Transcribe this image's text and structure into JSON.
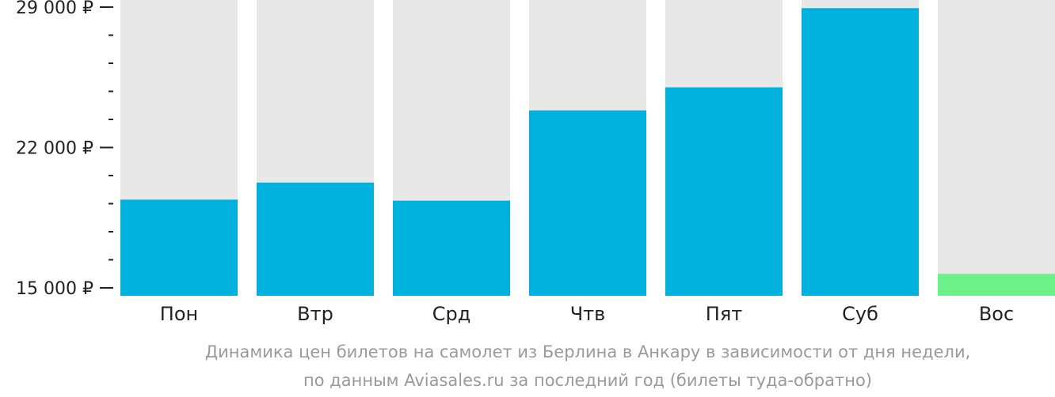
{
  "chart_data": {
    "type": "bar",
    "categories": [
      "Пон",
      "Втр",
      "Срд",
      "Чтв",
      "Пят",
      "Суб",
      "Вос"
    ],
    "values": [
      19400,
      20250,
      19350,
      23850,
      25000,
      28950,
      15700
    ],
    "ylim": [
      15000,
      29000
    ],
    "y_ticks": [
      {
        "value": 29000,
        "label": "29 000 ₽"
      },
      {
        "value": 22000,
        "label": "22 000 ₽"
      },
      {
        "value": 15000,
        "label": "15 000 ₽"
      }
    ],
    "y_minor_step": 1400,
    "highlight_index": 6,
    "colors": {
      "bar": "#00b0dd",
      "highlight": "#6df08a",
      "track": "#e8e8e8",
      "axis": "#222222",
      "caption": "#9a9a9a"
    },
    "caption_lines": [
      "Динамика цен билетов на самолет из Берлина в Анкару в зависимости от дня недели,",
      "по данным Aviasales.ru за последний год (билеты туда-обратно)"
    ]
  }
}
